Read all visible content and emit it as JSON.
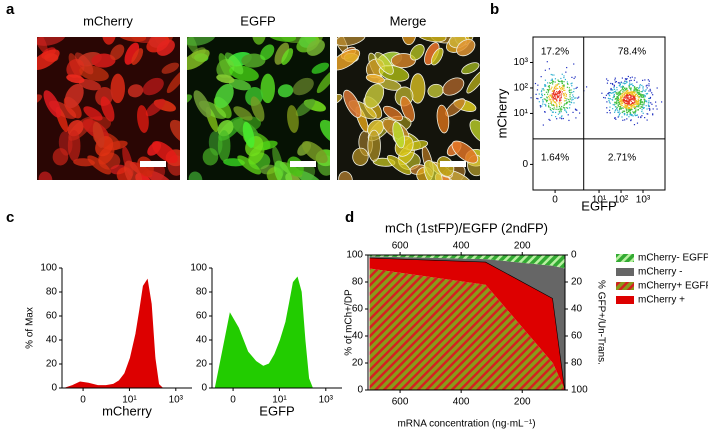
{
  "panel_labels": [
    "a",
    "b",
    "c",
    "d"
  ],
  "images": [
    {
      "title": "mCherry"
    },
    {
      "title": "EGFP"
    },
    {
      "title": "Merge"
    }
  ],
  "chart_data": [
    {
      "type": "flow-density",
      "xlabel": "EGFP",
      "ylabel": "mCherry",
      "xscale": "biexponential",
      "yscale": "biexponential",
      "xlim": [
        -1,
        10000
      ],
      "ylim": [
        -1,
        10000
      ],
      "xticks": [
        0,
        {
          "value": 10,
          "label": "10¹"
        },
        {
          "value": 100,
          "label": "10²"
        },
        {
          "value": 1000,
          "label": "10³"
        }
      ],
      "yticks": [
        0,
        {
          "value": 10,
          "label": "10¹"
        },
        {
          "value": 100,
          "label": "10²"
        },
        {
          "value": 1000,
          "label": "10³"
        }
      ],
      "gates": {
        "x": 2,
        "y": 1
      },
      "values": [
        17.2,
        78.4,
        1.64,
        2.71
      ],
      "value_labels": [
        "17.2%",
        "78.4%",
        "1.64%",
        "2.71%"
      ]
    },
    {
      "type": "area",
      "xlabel": "mCherry",
      "ylabel": "% of Max",
      "xscale": "biexponential",
      "color": "#dd0000",
      "xlim": [
        -0.8,
        5000
      ],
      "ylim": [
        0,
        100
      ],
      "yticks": [
        0,
        20,
        40,
        60,
        80,
        100
      ],
      "xticks": [
        0,
        {
          "value": 10,
          "label": "10¹"
        },
        {
          "value": 1000,
          "label": "10³"
        }
      ],
      "x": [
        -0.57,
        -0.25,
        -0.06,
        0.11,
        0.41,
        0.96,
        2,
        3.6,
        6.3,
        11,
        19,
        28,
        40,
        59,
        87,
        126,
        182,
        265
      ],
      "values": [
        0,
        2,
        5,
        4,
        2,
        2,
        3,
        6,
        12,
        25,
        45,
        65,
        85,
        90,
        70,
        25,
        3,
        0
      ]
    },
    {
      "type": "area",
      "xlabel": "EGFP",
      "xscale": "biexponential",
      "color": "#22cc00",
      "xlim": [
        -0.8,
        5000
      ],
      "ylim": [
        0,
        100
      ],
      "yticks": [
        0,
        20,
        40,
        60,
        80,
        100
      ],
      "xticks": [
        0,
        {
          "value": 10,
          "label": "10¹"
        },
        {
          "value": 1000,
          "label": "10³"
        }
      ],
      "x": [
        -0.57,
        -0.25,
        -0.06,
        0.11,
        0.41,
        0.96,
        2,
        3.6,
        6.3,
        11,
        19,
        28,
        40,
        59,
        87,
        126,
        182,
        265
      ],
      "values": [
        0,
        30,
        62,
        50,
        30,
        22,
        18,
        20,
        28,
        40,
        55,
        72,
        88,
        92,
        80,
        40,
        8,
        0
      ]
    },
    {
      "type": "stacked-area",
      "title": "mCh (1stFP)/EGFP (2ndFP)",
      "xlabel": "mRNA concentration (ng·mL⁻¹)",
      "ylabel": "% of mCh+/DP",
      "y2label": "% GFP+/Un-Trans.",
      "xlim": [
        705,
        60
      ],
      "ylim": [
        0,
        100
      ],
      "y2lim": [
        100,
        0
      ],
      "xticks": [
        600,
        400,
        200
      ],
      "yticks": [
        0,
        20,
        40,
        60,
        80,
        100
      ],
      "y2ticks": [
        0,
        20,
        40,
        60,
        80,
        100
      ],
      "x": [
        700,
        320,
        100,
        60
      ],
      "series": [
        {
          "name": "mCherry+ EGFP+",
          "color": "#8a9a1a",
          "hatch": "#d42020",
          "values": [
            90,
            78,
            20,
            0
          ]
        },
        {
          "name": "mCherry +",
          "color": "#dd0000",
          "line": "#000000",
          "values": [
            8,
            17,
            48,
            0
          ]
        },
        {
          "name": "mCherry -",
          "color": "#666666",
          "values": [
            1,
            2,
            24,
            90
          ]
        },
        {
          "name": "mCherry- EGFP+",
          "color": "#33aa33",
          "hatch": "#b8f0a0",
          "values": [
            1,
            3,
            8,
            10
          ]
        }
      ],
      "legend_order": [
        3,
        2,
        0,
        1
      ]
    }
  ]
}
